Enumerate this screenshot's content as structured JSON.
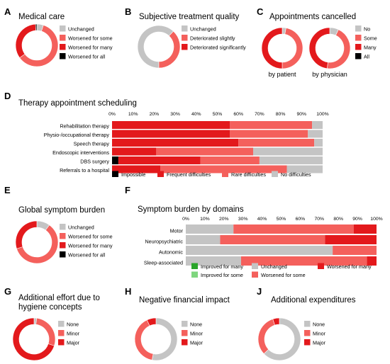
{
  "colors": {
    "impossible": "#000000",
    "frequent": "#e3191c",
    "rare": "#f4605c",
    "none": "#c4c4c4",
    "improved_many": "#2aa52a",
    "improved_some": "#7fd67f",
    "text": "#000000"
  },
  "chart_data": [
    {
      "id": "A",
      "type": "pie",
      "donut": true,
      "title": "Medical care",
      "legend": [
        "Unchanged",
        "Worsened for some",
        "Worsened for many",
        "Worsened for all"
      ],
      "legend_colors": [
        "#c4c4c4",
        "#f4605c",
        "#e3191c",
        "#000000"
      ],
      "values": [
        5,
        60,
        34,
        1
      ]
    },
    {
      "id": "B",
      "type": "pie",
      "donut": true,
      "title": "Subjective treatment quality",
      "legend": [
        "Unchanged",
        "Deteriorated slightly",
        "Deteriorated significantly"
      ],
      "legend_colors": [
        "#c4c4c4",
        "#f4605c",
        "#e3191c"
      ],
      "values": [
        62,
        38,
        0
      ]
    },
    {
      "id": "C",
      "type": "pie",
      "donut": true,
      "title": "Appointments cancelled",
      "legend": [
        "No",
        "Some",
        "Many",
        "All"
      ],
      "legend_colors": [
        "#c4c4c4",
        "#f4605c",
        "#e3191c",
        "#000000"
      ],
      "series": [
        {
          "name": "by patient",
          "values": [
            3,
            47,
            50,
            0
          ]
        },
        {
          "name": "by physician",
          "values": [
            7,
            45,
            48,
            0
          ]
        }
      ]
    },
    {
      "id": "D",
      "type": "bar",
      "orientation": "horizontal",
      "stacked": true,
      "title": "Therapy appointment scheduling",
      "categories": [
        "Rehabilitation therapy",
        "Physio-/occupational therapy",
        "Speech therapy",
        "Endoscopic interventions",
        "DBS surgery",
        "Referrals to a hospital"
      ],
      "ticks": [
        "0%",
        "10%",
        "20%",
        "30%",
        "40%",
        "50%",
        "60%",
        "70%",
        "80%",
        "90%",
        "100%"
      ],
      "xlim": [
        0,
        100
      ],
      "series": [
        {
          "name": "Impossible",
          "color": "#000000",
          "values": [
            0,
            0,
            0,
            0,
            3,
            0
          ]
        },
        {
          "name": "Frequent difficulties",
          "color": "#e3191c",
          "values": [
            56,
            56,
            60,
            21,
            39,
            23
          ]
        },
        {
          "name": "Rare difficulties",
          "color": "#f4605c",
          "values": [
            39,
            37,
            36,
            46,
            28,
            60
          ]
        },
        {
          "name": "No difficulties",
          "color": "#c4c4c4",
          "values": [
            5,
            7,
            4,
            33,
            30,
            17
          ]
        }
      ]
    },
    {
      "id": "E",
      "type": "pie",
      "donut": true,
      "title": "Global symptom burden",
      "legend": [
        "Unchanged",
        "Worsened for some",
        "Worsened for many",
        "Worsened for all"
      ],
      "legend_colors": [
        "#c4c4c4",
        "#f4605c",
        "#e3191c",
        "#000000"
      ],
      "values": [
        10,
        60,
        30,
        0
      ]
    },
    {
      "id": "F",
      "type": "bar",
      "orientation": "horizontal",
      "stacked": true,
      "title": "Symptom burden by domains",
      "categories": [
        "Motor",
        "Neuropsychiatric",
        "Autonomic",
        "Sleep-associated"
      ],
      "ticks": [
        "0%",
        "10%",
        "20%",
        "30%",
        "40%",
        "50%",
        "60%",
        "70%",
        "80%",
        "90%",
        "100%"
      ],
      "xlim": [
        0,
        100
      ],
      "series": [
        {
          "name": "Improved for many",
          "color": "#2aa52a",
          "values": [
            0,
            0,
            0,
            0
          ]
        },
        {
          "name": "Improved for some",
          "color": "#7fd67f",
          "values": [
            0,
            0,
            0,
            0
          ]
        },
        {
          "name": "Unchanged",
          "color": "#c4c4c4",
          "values": [
            25,
            18,
            77,
            29
          ]
        },
        {
          "name": "Worsened for some",
          "color": "#f4605c",
          "values": [
            63,
            55,
            23,
            66
          ]
        },
        {
          "name": "Worsened for many",
          "color": "#e3191c",
          "values": [
            12,
            27,
            0,
            5
          ]
        }
      ]
    },
    {
      "id": "G",
      "type": "pie",
      "donut": true,
      "title": "Additional effort due to hygiene concepts",
      "title_lines": [
        "Additional effort due to",
        "hygiene concepts"
      ],
      "legend": [
        "None",
        "Minor",
        "Major"
      ],
      "legend_colors": [
        "#c4c4c4",
        "#f4605c",
        "#e3191c"
      ],
      "values": [
        2,
        28,
        70
      ]
    },
    {
      "id": "H",
      "type": "pie",
      "donut": true,
      "title": "Negative financial impact",
      "legend": [
        "None",
        "Minor",
        "Major"
      ],
      "legend_colors": [
        "#c4c4c4",
        "#f4605c",
        "#e3191c"
      ],
      "values": [
        53,
        40,
        7
      ]
    },
    {
      "id": "J",
      "type": "pie",
      "donut": true,
      "title": "Additional expenditures",
      "legend": [
        "None",
        "Minor",
        "Major"
      ],
      "legend_colors": [
        "#c4c4c4",
        "#f4605c",
        "#e3191c"
      ],
      "values": [
        63,
        32,
        5
      ]
    }
  ]
}
